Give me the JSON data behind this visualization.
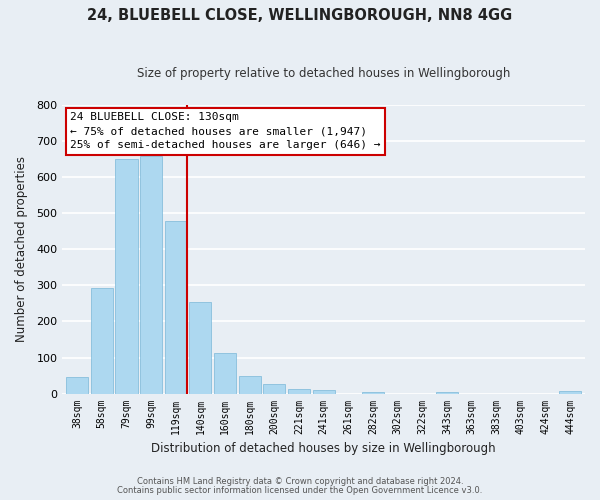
{
  "title": "24, BLUEBELL CLOSE, WELLINGBOROUGH, NN8 4GG",
  "subtitle": "Size of property relative to detached houses in Wellingborough",
  "xlabel": "Distribution of detached houses by size in Wellingborough",
  "ylabel": "Number of detached properties",
  "bin_labels": [
    "38sqm",
    "58sqm",
    "79sqm",
    "99sqm",
    "119sqm",
    "140sqm",
    "160sqm",
    "180sqm",
    "200sqm",
    "221sqm",
    "241sqm",
    "261sqm",
    "282sqm",
    "302sqm",
    "322sqm",
    "343sqm",
    "363sqm",
    "383sqm",
    "403sqm",
    "424sqm",
    "444sqm"
  ],
  "bar_heights": [
    47,
    293,
    651,
    660,
    480,
    253,
    112,
    48,
    27,
    14,
    10,
    0,
    3,
    0,
    0,
    5,
    0,
    0,
    0,
    0,
    6
  ],
  "bar_color": "#add8f0",
  "bar_edge_color": "#7ab8d8",
  "vline_color": "#cc0000",
  "annotation_line1": "24 BLUEBELL CLOSE: 130sqm",
  "annotation_line2": "← 75% of detached houses are smaller (1,947)",
  "annotation_line3": "25% of semi-detached houses are larger (646) →",
  "box_facecolor": "#ffffff",
  "box_edgecolor": "#cc0000",
  "footer1": "Contains HM Land Registry data © Crown copyright and database right 2024.",
  "footer2": "Contains public sector information licensed under the Open Government Licence v3.0.",
  "ylim": [
    0,
    800
  ],
  "yticks": [
    0,
    100,
    200,
    300,
    400,
    500,
    600,
    700,
    800
  ],
  "background_color": "#e8eef4",
  "plot_background": "#e8eef4",
  "grid_color": "#ffffff",
  "title_color": "#222222",
  "subtitle_color": "#333333"
}
